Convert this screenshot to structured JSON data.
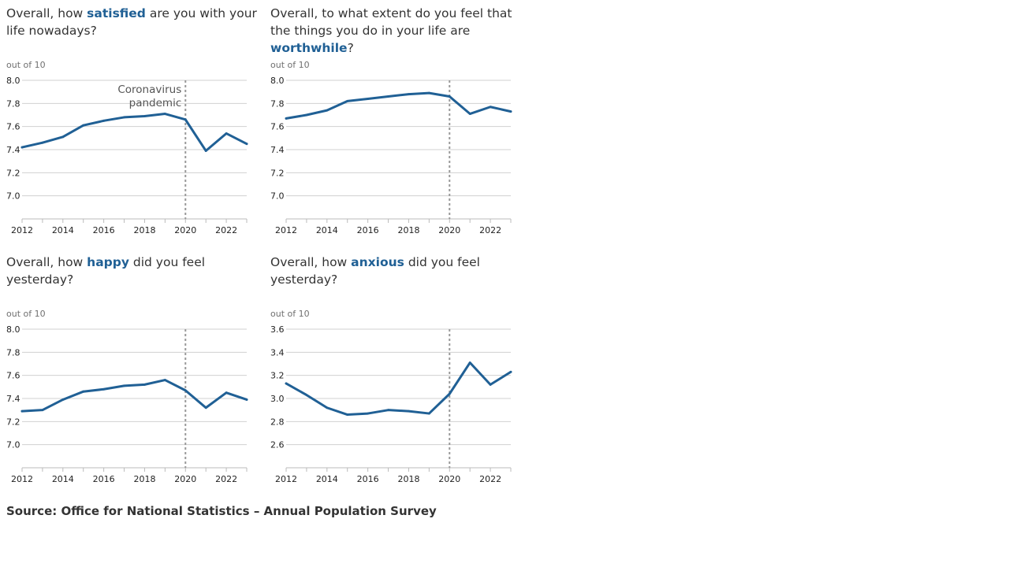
{
  "chart_data": [
    {
      "type": "line",
      "title_parts": [
        "Overall, how ",
        "satisfied",
        " are you with your life nowadays?"
      ],
      "unit_label": "out of 10",
      "x": [
        2012,
        2013,
        2014,
        2015,
        2016,
        2017,
        2018,
        2019,
        2020,
        2021,
        2022,
        2023
      ],
      "series": [
        {
          "values": [
            7.42,
            7.46,
            7.51,
            7.61,
            7.65,
            7.68,
            7.69,
            7.71,
            7.66,
            7.39,
            7.54,
            7.45
          ]
        }
      ],
      "ylim": [
        6.8,
        8.0
      ],
      "y_ticks": [
        "7.0",
        "7.2",
        "7.4",
        "7.6",
        "7.8",
        "8.0"
      ],
      "x_ticks": [
        "2012",
        "2014",
        "2016",
        "2018",
        "2020",
        "2022"
      ],
      "marker_x": 2020,
      "annotation": [
        "Coronavirus",
        "pandemic"
      ],
      "line_color": "#206095"
    },
    {
      "type": "line",
      "title_parts": [
        "Overall, to what extent do you feel that the things you do in your life are ",
        "worthwhile",
        "?"
      ],
      "unit_label": "out of 10",
      "x": [
        2012,
        2013,
        2014,
        2015,
        2016,
        2017,
        2018,
        2019,
        2020,
        2021,
        2022,
        2023
      ],
      "series": [
        {
          "values": [
            7.67,
            7.7,
            7.74,
            7.82,
            7.84,
            7.86,
            7.88,
            7.89,
            7.86,
            7.71,
            7.77,
            7.73
          ]
        }
      ],
      "ylim": [
        6.8,
        8.0
      ],
      "y_ticks": [
        "7.0",
        "7.2",
        "7.4",
        "7.6",
        "7.8",
        "8.0"
      ],
      "x_ticks": [
        "2012",
        "2014",
        "2016",
        "2018",
        "2020",
        "2022"
      ],
      "marker_x": 2020,
      "line_color": "#206095"
    },
    {
      "type": "line",
      "title_parts": [
        "Overall, how ",
        "happy",
        " did you feel yesterday?"
      ],
      "unit_label": "out of 10",
      "x": [
        2012,
        2013,
        2014,
        2015,
        2016,
        2017,
        2018,
        2019,
        2020,
        2021,
        2022,
        2023
      ],
      "series": [
        {
          "values": [
            7.29,
            7.3,
            7.39,
            7.46,
            7.48,
            7.51,
            7.52,
            7.56,
            7.47,
            7.32,
            7.45,
            7.39
          ]
        }
      ],
      "ylim": [
        6.8,
        8.0
      ],
      "y_ticks": [
        "7.0",
        "7.2",
        "7.4",
        "7.6",
        "7.8",
        "8.0"
      ],
      "x_ticks": [
        "2012",
        "2014",
        "2016",
        "2018",
        "2020",
        "2022"
      ],
      "marker_x": 2020,
      "line_color": "#206095"
    },
    {
      "type": "line",
      "title_parts": [
        "Overall, how ",
        "anxious",
        " did you feel yesterday?"
      ],
      "unit_label": "out of 10",
      "x": [
        2012,
        2013,
        2014,
        2015,
        2016,
        2017,
        2018,
        2019,
        2020,
        2021,
        2022,
        2023
      ],
      "series": [
        {
          "values": [
            3.13,
            3.03,
            2.92,
            2.86,
            2.87,
            2.9,
            2.89,
            2.87,
            3.04,
            3.31,
            3.12,
            3.23
          ]
        }
      ],
      "ylim": [
        2.4,
        3.6
      ],
      "y_ticks": [
        "2.6",
        "2.8",
        "3.0",
        "3.2",
        "3.4",
        "3.6"
      ],
      "x_ticks": [
        "2012",
        "2014",
        "2016",
        "2018",
        "2020",
        "2022"
      ],
      "marker_x": 2020,
      "line_color": "#206095"
    }
  ],
  "source": "Source: Office for National Statistics – Annual Population Survey"
}
